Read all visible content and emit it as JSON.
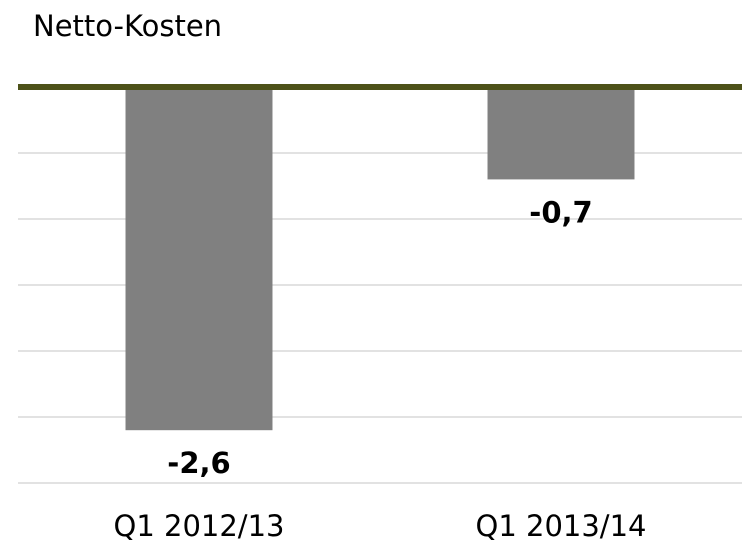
{
  "chart_data": {
    "type": "bar",
    "title": "Netto-Kosten",
    "categories": [
      "Q1 2012/13",
      "Q1 2013/14"
    ],
    "values": [
      -2.6,
      -0.7
    ],
    "value_labels": [
      "-2,6",
      "-0,7"
    ],
    "color": "#808080",
    "zero_line_color": "#4d5219",
    "ylim": [
      -3,
      0
    ],
    "yticks": [
      0,
      -0.5,
      -1,
      -1.5,
      -2,
      -2.5,
      -3
    ],
    "grid": true
  }
}
